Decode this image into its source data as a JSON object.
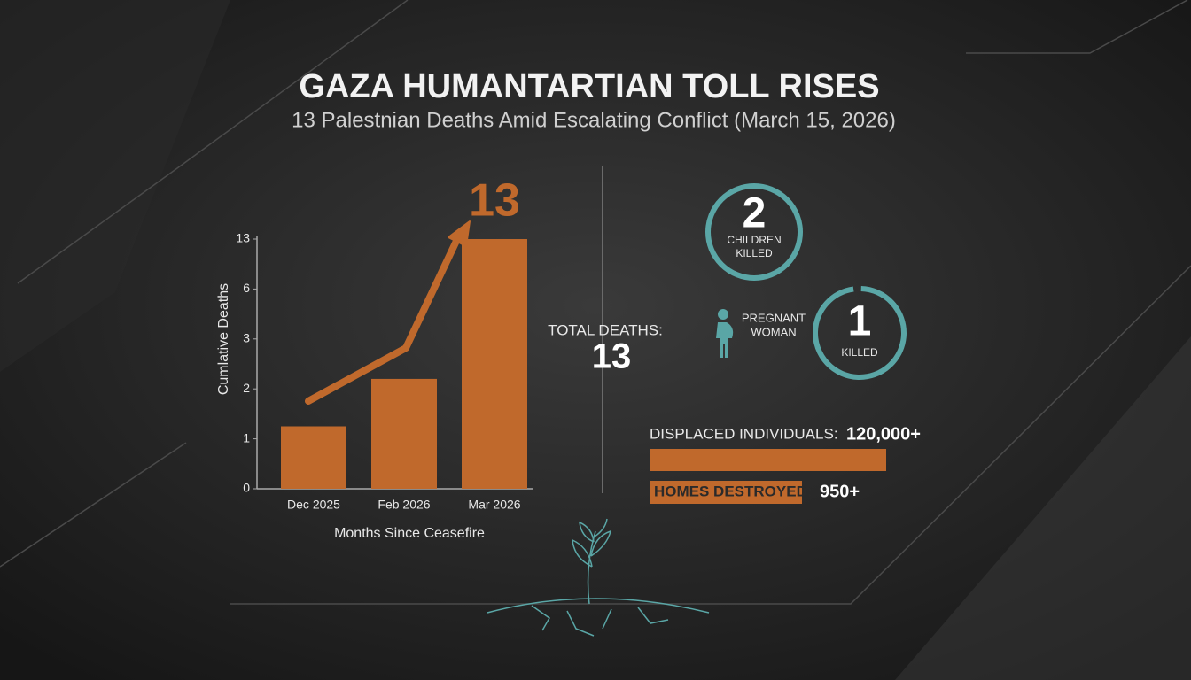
{
  "header": {
    "title": "GAZA HUMANTARTIAN TOLL RISES",
    "subtitle": "13 Palestnian Deaths Amid Escalating Conflict (March 15, 2026)"
  },
  "chart_data": {
    "type": "bar",
    "y_label": "Cumlative Deaths",
    "x_label": "Months Since Ceasefire",
    "categories": [
      "Dec 2025",
      "Feb 2026",
      "Mar 2026"
    ],
    "values": [
      1.25,
      2.2,
      13
    ],
    "color": "#c0692c",
    "ylim": [
      0,
      13
    ],
    "yticks": [
      0,
      1,
      2,
      3,
      6,
      13
    ]
  },
  "stats": {
    "total_deaths": {
      "label": "TOTAL DEATHS:",
      "value": 13
    },
    "children": {
      "value": 2,
      "label_lines": [
        "CHILDREN",
        "KILLED"
      ]
    },
    "pregnant": {
      "value": 1,
      "label_lines": [
        "PREGNANT",
        "WOMAN"
      ],
      "caption": "KILLED"
    },
    "displaced": {
      "label": "DISPLACED INDIVIDUALS:",
      "value": "120,000+"
    },
    "homes": {
      "label": "HOMES DESTROYED:",
      "value": "950+"
    }
  }
}
